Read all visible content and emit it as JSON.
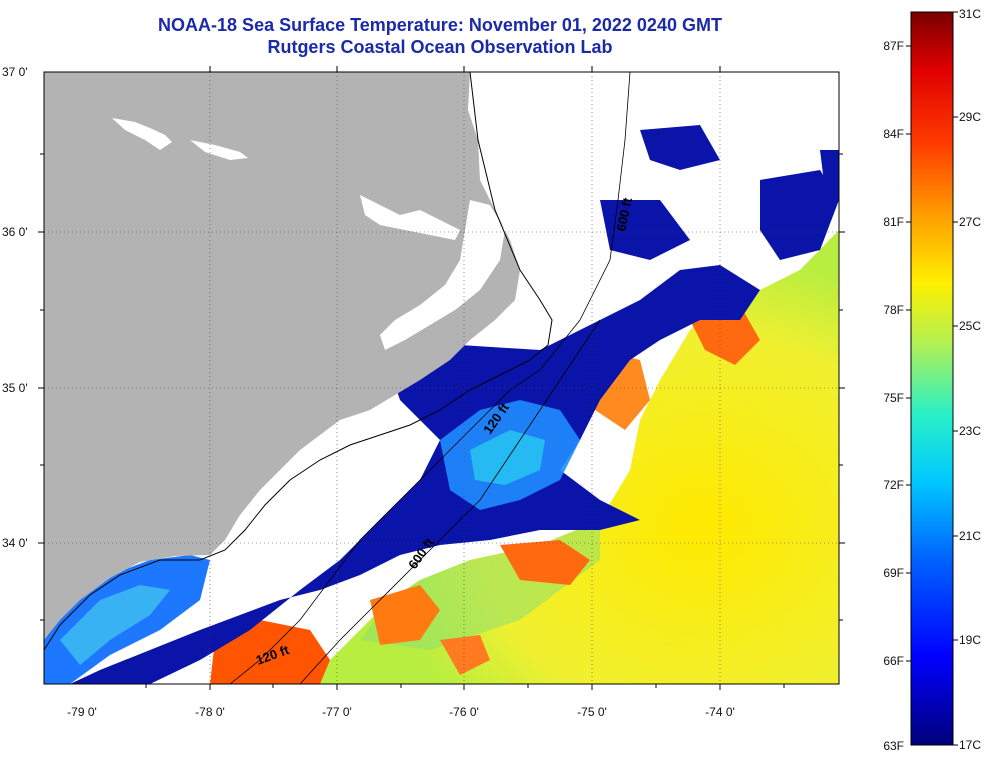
{
  "title": {
    "line1": "NOAA-18 Sea Surface Temperature:  November 01, 2022 0240 GMT",
    "line2": "Rutgers Coastal Ocean Observation Lab"
  },
  "map": {
    "latitude_labels": [
      "37 0'",
      "36 0'",
      "35 0'",
      "34 0'"
    ],
    "longitude_labels": [
      "-79 0'",
      "-78 0'",
      "-77 0'",
      "-76 0'",
      "-75 0'",
      "-74 0'"
    ],
    "contour_labels": [
      "600 ft",
      "120 ft",
      "600 ft",
      "120 ft"
    ],
    "colors": {
      "land": "#b3b3b3",
      "cloud": "#ffffff",
      "cold": "#00008b",
      "warm": "#ffd400",
      "hot": "#ff5a00"
    }
  },
  "colorbar": {
    "celsius_labels": [
      "31C",
      "29C",
      "27C",
      "25C",
      "23C",
      "21C",
      "19C",
      "17C"
    ],
    "fahrenheit_labels": [
      "87F",
      "84F",
      "81F",
      "78F",
      "75F",
      "72F",
      "69F",
      "66F",
      "63F"
    ],
    "celsius_range": [
      17,
      31
    ],
    "fahrenheit_range": [
      63,
      87.8
    ]
  }
}
